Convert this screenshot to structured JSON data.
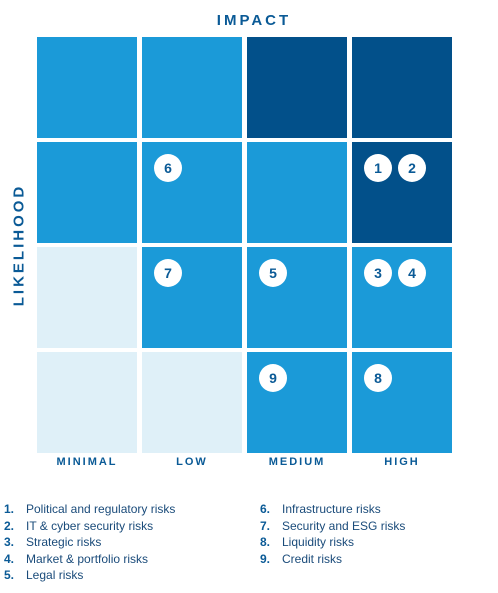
{
  "axes": {
    "x_title": "IMPACT",
    "y_title": "LIKELIHOOD",
    "columns": [
      "MINIMAL",
      "LOW",
      "MEDIUM",
      "HIGH"
    ]
  },
  "colors": {
    "pale": "#dff0f8",
    "mid": "#1b9ad8",
    "dark": "#02508a",
    "badge_text": "#0a5a96"
  },
  "grid": [
    [
      "mid",
      "mid",
      "dark",
      "dark"
    ],
    [
      "mid",
      "mid",
      "mid",
      "dark"
    ],
    [
      "pale",
      "mid",
      "mid",
      "mid"
    ],
    [
      "pale",
      "pale",
      "mid",
      "mid"
    ]
  ],
  "risks": [
    {
      "id": "1",
      "label": "Political and regulatory risks",
      "row": 1,
      "col": 3,
      "slot": 0
    },
    {
      "id": "2",
      "label": "IT & cyber security risks",
      "row": 1,
      "col": 3,
      "slot": 1
    },
    {
      "id": "3",
      "label": "Strategic risks",
      "row": 2,
      "col": 3,
      "slot": 0
    },
    {
      "id": "4",
      "label": "Market & portfolio risks",
      "row": 2,
      "col": 3,
      "slot": 1
    },
    {
      "id": "5",
      "label": "Legal risks",
      "row": 2,
      "col": 2,
      "slot": 0
    },
    {
      "id": "6",
      "label": "Infrastructure risks",
      "row": 1,
      "col": 1,
      "slot": 0
    },
    {
      "id": "7",
      "label": "Security and ESG risks",
      "row": 2,
      "col": 1,
      "slot": 0
    },
    {
      "id": "8",
      "label": "Liquidity risks",
      "row": 3,
      "col": 3,
      "slot": 0
    },
    {
      "id": "9",
      "label": "Credit risks",
      "row": 3,
      "col": 2,
      "slot": 0
    }
  ]
}
